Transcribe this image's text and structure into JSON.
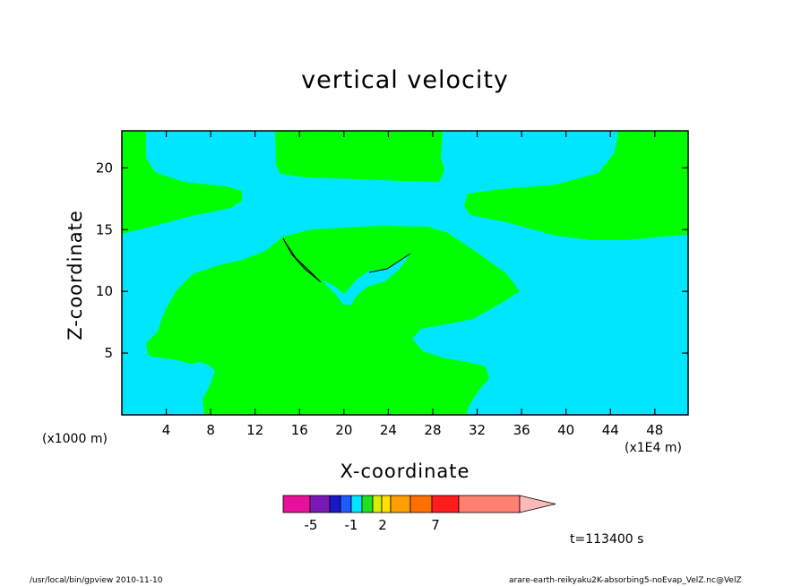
{
  "chart_data": {
    "type": "heatmap",
    "title": "vertical velocity",
    "xlabel": "X-coordinate",
    "ylabel": "Z-coordinate",
    "x_unit_label": "(x1E4 m)",
    "y_unit_label": "(x1000 m)",
    "x_ticks": [
      "4",
      "8",
      "12",
      "16",
      "20",
      "24",
      "28",
      "32",
      "36",
      "40",
      "44",
      "48"
    ],
    "y_ticks": [
      "5",
      "10",
      "15",
      "20"
    ],
    "xlim": [
      0,
      51
    ],
    "ylim": [
      0,
      23
    ],
    "time_label": "t=113400 s",
    "colorbar": {
      "tick_labels": [
        "-5",
        "-1",
        "2",
        "7"
      ],
      "colors": [
        "#e8109a",
        "#7b18b8",
        "#1818c8",
        "#1e5aff",
        "#00e5ff",
        "#20e020",
        "#d8f000",
        "#ffe000",
        "#ffa000",
        "#ff7000",
        "#ff1c1c",
        "#ff8070",
        "#ffb8b8"
      ]
    },
    "regions": {
      "positive_color": "#00ff00",
      "negative_color": "#00e6ff"
    }
  },
  "footer": {
    "left": "/usr/local/bin/gpview   2010-11-10",
    "right": "arare-earth-reikyaku2K-absorbing5-noEvap_VelZ.nc@VelZ"
  }
}
